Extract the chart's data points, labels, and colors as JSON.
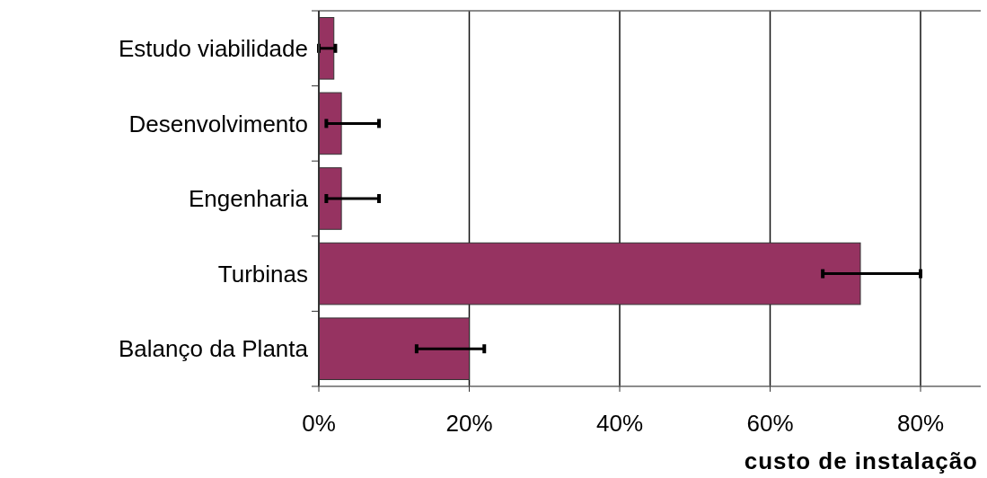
{
  "chart_data": {
    "type": "bar",
    "orientation": "horizontal",
    "xlabel": "custo de instalação",
    "categories": [
      "Estudo viabilidade",
      "Desenvolvimento",
      "Engenharia",
      "Turbinas",
      "Balanço da Planta"
    ],
    "values": [
      2,
      3,
      3,
      72,
      20
    ],
    "errors": [
      [
        0,
        2.2
      ],
      [
        1,
        8
      ],
      [
        1,
        8
      ],
      [
        67,
        80
      ],
      [
        13,
        22
      ]
    ],
    "color": "#963361",
    "xlim": [
      0,
      88
    ],
    "xticks": [
      {
        "value": 0,
        "label": "0%"
      },
      {
        "value": 20,
        "label": "20%"
      },
      {
        "value": 40,
        "label": "40%"
      },
      {
        "value": 60,
        "label": "60%"
      },
      {
        "value": 80,
        "label": "80%"
      }
    ],
    "grid": "x"
  }
}
